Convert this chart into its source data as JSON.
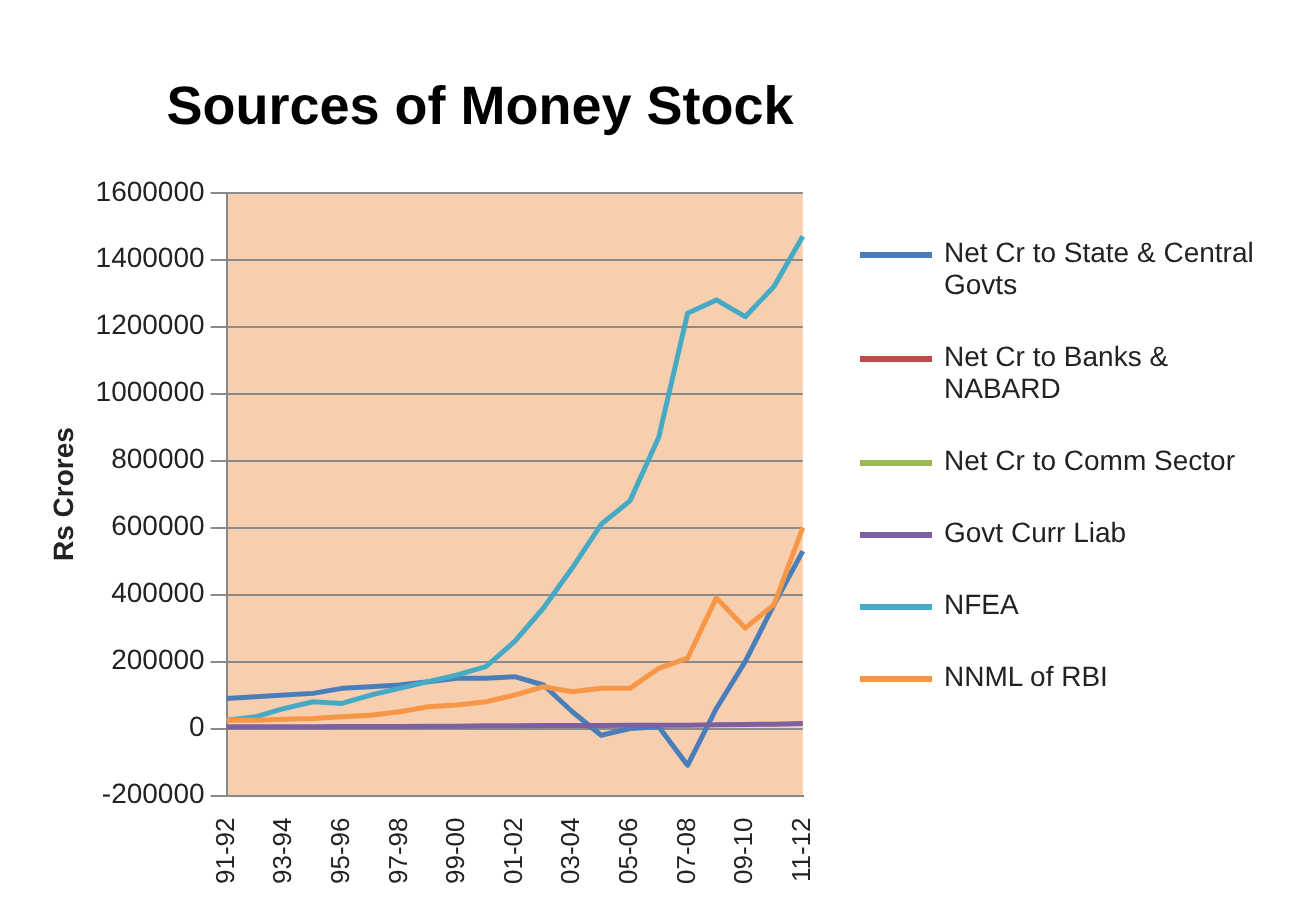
{
  "chart_data": {
    "type": "line",
    "title": "Sources of Money Stock",
    "ylabel": "Rs Crores",
    "categories": [
      "91-92",
      null,
      "93-94",
      null,
      "95-96",
      null,
      "97-98",
      null,
      "99-00",
      null,
      "01-02",
      null,
      "03-04",
      null,
      "05-06",
      null,
      "07-08",
      null,
      "09-10",
      null,
      "11-12"
    ],
    "series": [
      {
        "name": "Net Cr to State & Central Govts",
        "color": "#4a7ebb",
        "values": [
          90000,
          95000,
          100000,
          105000,
          120000,
          125000,
          130000,
          140000,
          150000,
          150000,
          155000,
          130000,
          50000,
          -20000,
          0,
          5000,
          -110000,
          60000,
          200000,
          370000,
          530000
        ]
      },
      {
        "name": "Net Cr to Banks & NABARD",
        "color": "#be4b48",
        "values": [
          null,
          null,
          null,
          null,
          null,
          null,
          null,
          null,
          null,
          null,
          null,
          null,
          null,
          null,
          null,
          null,
          null,
          null,
          null,
          null,
          null
        ]
      },
      {
        "name": "Net Cr to Comm Sector",
        "color": "#98b954",
        "values": [
          null,
          null,
          null,
          null,
          null,
          null,
          null,
          null,
          null,
          null,
          null,
          null,
          null,
          null,
          null,
          null,
          null,
          null,
          null,
          null,
          null
        ]
      },
      {
        "name": "Govt Curr Liab",
        "color": "#7d60a0",
        "values": [
          5000,
          5000,
          5000,
          5000,
          6000,
          6000,
          6000,
          7000,
          7000,
          8000,
          8000,
          9000,
          9000,
          9000,
          10000,
          10000,
          10000,
          11000,
          12000,
          13000,
          15000
        ]
      },
      {
        "name": "NFEA",
        "color": "#46aac5",
        "values": [
          25000,
          35000,
          60000,
          80000,
          75000,
          100000,
          120000,
          140000,
          160000,
          185000,
          260000,
          360000,
          480000,
          610000,
          680000,
          870000,
          1240000,
          1280000,
          1230000,
          1320000,
          1470000
        ]
      },
      {
        "name": "NNML of RBI",
        "color": "#f79646",
        "values": [
          25000,
          25000,
          28000,
          30000,
          35000,
          40000,
          50000,
          65000,
          70000,
          80000,
          100000,
          125000,
          110000,
          120000,
          120000,
          180000,
          210000,
          390000,
          300000,
          370000,
          600000
        ]
      }
    ],
    "ylim": [
      -200000,
      1600000
    ],
    "yticks": [
      -200000,
      0,
      200000,
      400000,
      600000,
      800000,
      1000000,
      1200000,
      1400000,
      1600000
    ],
    "grid": "y",
    "legend": "right",
    "marker": "none",
    "line_style": "solid"
  }
}
